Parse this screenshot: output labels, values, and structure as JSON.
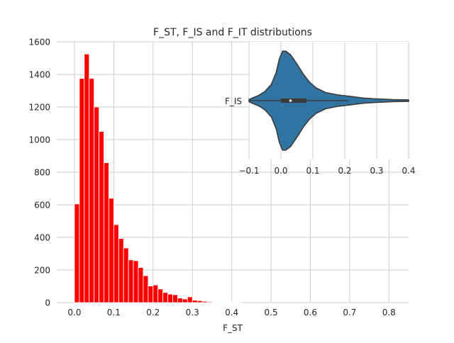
{
  "title": "F_ST, F_IS and F_IT distributions",
  "chart_data": [
    {
      "type": "bar",
      "subtype": "histogram",
      "title": "F_ST, F_IS and F_IT distributions",
      "xlabel": "F_ST",
      "ylabel": "",
      "xlim": [
        -0.045,
        0.85
      ],
      "ylim": [
        0,
        1600
      ],
      "grid": true,
      "bar_color": "#ff0000",
      "bin_width": 0.0125,
      "bin_start": 0.0,
      "counts": [
        605,
        1375,
        1525,
        1375,
        1200,
        1050,
        858,
        640,
        478,
        393,
        335,
        262,
        257,
        215,
        165,
        102,
        108,
        83,
        62,
        52,
        48,
        28,
        22,
        35,
        15,
        12,
        8,
        5,
        3,
        2,
        1,
        1,
        1,
        1
      ],
      "x_ticks": [
        "0.0",
        "0.1",
        "0.2",
        "0.3",
        "0.4",
        "0.5",
        "0.6",
        "0.7",
        "0.8"
      ],
      "y_ticks": [
        "0",
        "200",
        "400",
        "600",
        "800",
        "1000",
        "1200",
        "1400",
        "1600"
      ]
    },
    {
      "type": "violin",
      "category": "F_IS",
      "xlim": [
        -0.1,
        0.4
      ],
      "grid": true,
      "fill_color": "#3274a1",
      "edge_color": "#3a3a3a",
      "x_ticks": [
        "−0.1",
        "0.0",
        "0.1",
        "0.2",
        "0.3",
        "0.4"
      ],
      "median": 0.03,
      "quartiles": [
        0.0,
        0.08
      ],
      "whiskers": [
        -0.1,
        0.21
      ],
      "density": [
        {
          "x": -0.1,
          "w": 0.02
        },
        {
          "x": -0.09,
          "w": 0.05
        },
        {
          "x": -0.07,
          "w": 0.1
        },
        {
          "x": -0.05,
          "w": 0.18
        },
        {
          "x": -0.03,
          "w": 0.32
        },
        {
          "x": -0.015,
          "w": 0.55
        },
        {
          "x": -0.005,
          "w": 0.82
        },
        {
          "x": 0.005,
          "w": 0.97
        },
        {
          "x": 0.015,
          "w": 0.97
        },
        {
          "x": 0.03,
          "w": 0.9
        },
        {
          "x": 0.05,
          "w": 0.72
        },
        {
          "x": 0.07,
          "w": 0.52
        },
        {
          "x": 0.09,
          "w": 0.36
        },
        {
          "x": 0.11,
          "w": 0.25
        },
        {
          "x": 0.14,
          "w": 0.16
        },
        {
          "x": 0.18,
          "w": 0.11
        },
        {
          "x": 0.22,
          "w": 0.08
        },
        {
          "x": 0.26,
          "w": 0.05
        },
        {
          "x": 0.3,
          "w": 0.035
        },
        {
          "x": 0.35,
          "w": 0.02
        },
        {
          "x": 0.4,
          "w": 0.015
        }
      ]
    }
  ]
}
